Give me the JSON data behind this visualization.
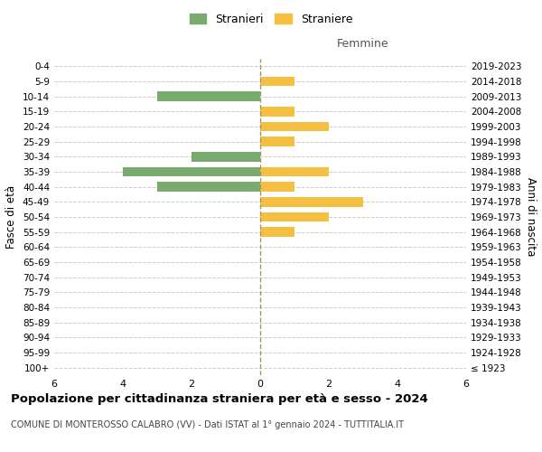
{
  "age_groups": [
    "100+",
    "95-99",
    "90-94",
    "85-89",
    "80-84",
    "75-79",
    "70-74",
    "65-69",
    "60-64",
    "55-59",
    "50-54",
    "45-49",
    "40-44",
    "35-39",
    "30-34",
    "25-29",
    "20-24",
    "15-19",
    "10-14",
    "5-9",
    "0-4"
  ],
  "birth_years": [
    "≤ 1923",
    "1924-1928",
    "1929-1933",
    "1934-1938",
    "1939-1943",
    "1944-1948",
    "1949-1953",
    "1954-1958",
    "1959-1963",
    "1964-1968",
    "1969-1973",
    "1974-1978",
    "1979-1983",
    "1984-1988",
    "1989-1993",
    "1994-1998",
    "1999-2003",
    "2004-2008",
    "2009-2013",
    "2014-2018",
    "2019-2023"
  ],
  "males": [
    0,
    0,
    0,
    0,
    0,
    0,
    0,
    0,
    0,
    0,
    0,
    0,
    3,
    4,
    2,
    0,
    0,
    0,
    3,
    0,
    0
  ],
  "females": [
    0,
    0,
    0,
    0,
    0,
    0,
    0,
    0,
    0,
    1,
    2,
    3,
    1,
    2,
    0,
    1,
    2,
    1,
    0,
    1,
    0
  ],
  "color_male": "#7aab6e",
  "color_female": "#f5bf42",
  "title": "Popolazione per cittadinanza straniera per età e sesso - 2024",
  "subtitle": "COMUNE DI MONTEROSSO CALABRO (VV) - Dati ISTAT al 1° gennaio 2024 - TUTTITALIA.IT",
  "xlabel_right": "Femmine",
  "ylabel_left": "Fasce di età",
  "ylabel_right": "Anni di nascita",
  "legend_male": "Stranieri",
  "legend_female": "Straniere",
  "xlim": 6,
  "background_color": "#ffffff",
  "grid_color": "#cccccc",
  "dashed_line_color": "#999966"
}
